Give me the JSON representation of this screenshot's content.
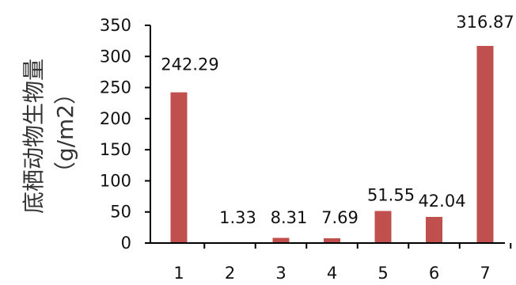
{
  "chart_data": {
    "type": "bar",
    "categories": [
      "1",
      "2",
      "3",
      "4",
      "5",
      "6",
      "7"
    ],
    "values": [
      242.29,
      1.33,
      8.31,
      7.69,
      51.55,
      42.04,
      316.87
    ],
    "data_labels": [
      "242.29",
      "1.33",
      "8.31",
      "7.69",
      "51.55",
      "42.04",
      "316.87"
    ],
    "title": "",
    "xlabel": "",
    "ylabel": "底栖动物生物量",
    "ylabel_unit": "（g/m2）",
    "ylim": [
      0,
      350
    ],
    "yticks": [
      0,
      50,
      100,
      150,
      200,
      250,
      300,
      350
    ],
    "grid": false,
    "legend": "none",
    "bar_color": "#c0504d"
  }
}
